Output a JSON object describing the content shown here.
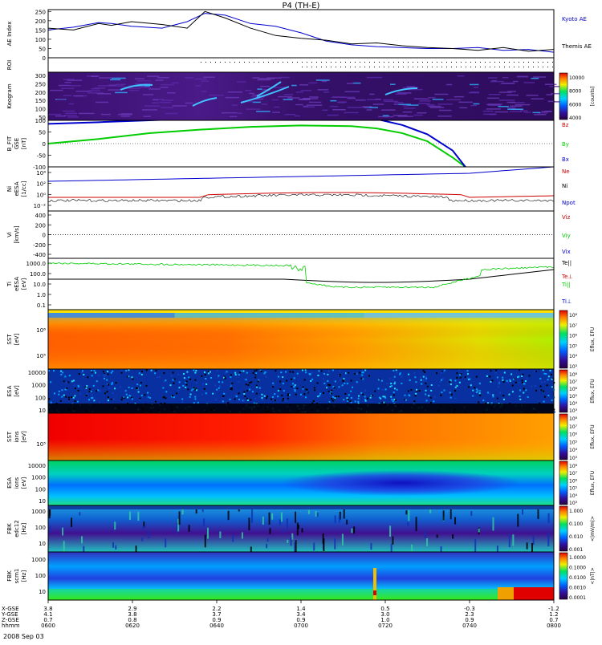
{
  "title": "P4 (TH-E)",
  "date_label": "2008 Sep 03",
  "colors": {
    "blue": "#0000cc",
    "black": "#000000",
    "green": "#00cc00",
    "red": "#cc0000"
  },
  "chart_data": [
    {
      "type": "line",
      "panel": "ae",
      "ylabel": "AE Index",
      "yticks": [
        "250",
        "200",
        "150",
        "100",
        "50",
        "0"
      ],
      "ylim": [
        0,
        260
      ],
      "x_hours": [
        6.0,
        6.1,
        6.2,
        6.25,
        6.33,
        6.45,
        6.55,
        6.62,
        6.7,
        6.8,
        6.9,
        7.0,
        7.1,
        7.2,
        7.3,
        7.4,
        7.5,
        7.6,
        7.7,
        7.8,
        7.9,
        8.0
      ],
      "series": [
        {
          "name": "Kyoto AE",
          "color": "#0000cc",
          "values": [
            150,
            165,
            190,
            185,
            170,
            160,
            195,
            240,
            230,
            185,
            170,
            135,
            90,
            70,
            60,
            55,
            50,
            50,
            55,
            40,
            45,
            30
          ]
        },
        {
          "name": "Themis AE",
          "color": "#000000",
          "values": [
            160,
            150,
            185,
            175,
            195,
            180,
            160,
            250,
            215,
            160,
            120,
            105,
            95,
            75,
            80,
            65,
            55,
            50,
            40,
            55,
            35,
            45
          ]
        }
      ]
    },
    {
      "type": "ticks",
      "panel": "roi",
      "ylabel": "ROI"
    },
    {
      "type": "heatmap",
      "panel": "keogram",
      "ylabel": "Keogram",
      "yticks": [
        "300",
        "250",
        "200",
        "150",
        "100",
        "50"
      ],
      "colorbar": {
        "ticks": [
          "10000",
          "8000",
          "6000",
          "4000"
        ],
        "label": "[counts]"
      }
    },
    {
      "type": "line",
      "panel": "bfit",
      "ylabel": "B_FIT",
      "ylabel2": "GSE",
      "ylabel3": "[nT]",
      "yticks": [
        "100",
        "50",
        "0",
        "-50",
        "-100"
      ],
      "ylim": [
        -100,
        100
      ],
      "x_hours": [
        6.0,
        6.2,
        6.4,
        6.6,
        6.8,
        7.0,
        7.2,
        7.3,
        7.4,
        7.5,
        7.6,
        7.65,
        7.7
      ],
      "series": [
        {
          "name": "Bz",
          "color": "#cc0000",
          "values": []
        },
        {
          "name": "By",
          "color": "#00cc00",
          "values": [
            0,
            20,
            45,
            60,
            72,
            78,
            75,
            65,
            45,
            10,
            -60,
            -100,
            -130
          ]
        },
        {
          "name": "Bx",
          "color": "#0000cc",
          "values": [
            85,
            92,
            100,
            108,
            115,
            118,
            115,
            105,
            80,
            40,
            -30,
            -100,
            -150
          ]
        }
      ]
    },
    {
      "type": "line",
      "panel": "ni",
      "ylabel": "Ni",
      "ylabel2": "eESA",
      "ylabel3": "[1/cc]",
      "yticks": [
        "10⁴",
        "10²",
        "10⁰",
        "10⁻²"
      ],
      "series": [
        {
          "name": "Ne",
          "color": "#cc0000"
        },
        {
          "name": "Ni",
          "color": "#000000"
        },
        {
          "name": "Npot",
          "color": "#0000cc"
        }
      ]
    },
    {
      "type": "line",
      "panel": "vi",
      "ylabel": "Vi",
      "ylabel3": "[km/s]",
      "yticks": [
        "400",
        "200",
        "0",
        "-200",
        "-400"
      ],
      "series": [
        {
          "name": "Viz",
          "color": "#cc0000"
        },
        {
          "name": "Viy",
          "color": "#00cc00"
        },
        {
          "name": "Vix",
          "color": "#0000cc"
        }
      ]
    },
    {
      "type": "line",
      "panel": "ti",
      "ylabel": "Ti",
      "ylabel2": "eESA",
      "ylabel3": "[eV]",
      "yticks": [
        "1000.0",
        "100.0",
        "10.0",
        "1.0",
        "0.1"
      ],
      "series": [
        {
          "name": "Te||",
          "color": "#000000"
        },
        {
          "name": "Te⊥",
          "color": "#cc0000"
        },
        {
          "name": "Ti||",
          "color": "#00cc00"
        },
        {
          "name": "Ti⊥",
          "color": "#0000cc"
        }
      ]
    },
    {
      "type": "heatmap",
      "panel": "sst_e",
      "ylabel": "SST",
      "ylabel3": "[eV]",
      "yticks": [
        "10⁶",
        "10⁵"
      ],
      "colorbar": {
        "ticks": [
          "10⁸",
          "10⁷",
          "10⁶",
          "10⁵",
          "10⁴",
          "10³"
        ],
        "label": "Eflux, EFU"
      }
    },
    {
      "type": "heatmap",
      "panel": "esa_e",
      "ylabel": "ESA",
      "ylabel3": "[eV]",
      "yticks": [
        "10000",
        "1000",
        "100",
        "10"
      ],
      "colorbar": {
        "ticks": [
          "10⁸",
          "10⁷",
          "10⁶",
          "10⁵",
          "10⁴",
          "10³"
        ],
        "label": "Eflux, EFU"
      }
    },
    {
      "type": "heatmap",
      "panel": "sst_i",
      "ylabel": "SST",
      "ylabel2": "ions",
      "ylabel3": "[eV]",
      "yticks": [
        "10⁵"
      ],
      "colorbar": {
        "ticks": [
          "10⁸",
          "10⁷",
          "10⁶",
          "10⁵",
          "10⁴",
          "10³"
        ],
        "label": "Eflux, EFU"
      }
    },
    {
      "type": "heatmap",
      "panel": "esa_i",
      "ylabel": "ESA",
      "ylabel2": "ions",
      "ylabel3": "[eV]",
      "yticks": [
        "10000",
        "1000",
        "100",
        "10"
      ],
      "colorbar": {
        "ticks": [
          "10⁸",
          "10⁷",
          "10⁶",
          "10⁵",
          "10⁴",
          "10³"
        ],
        "label": "Eflux, EFU"
      }
    },
    {
      "type": "heatmap",
      "panel": "fbk1",
      "ylabel": "FBK",
      "ylabel2": "edc12",
      "ylabel3": "[Hz]",
      "yticks": [
        "1000",
        "100",
        "10"
      ],
      "colorbar": {
        "ticks": [
          "1.000",
          "0.100",
          "0.010",
          "0.001"
        ],
        "label": "<|mV/m|>"
      }
    },
    {
      "type": "heatmap",
      "panel": "fbk2",
      "ylabel": "FBK",
      "ylabel2": "scm1",
      "ylabel3": "[Hz]",
      "yticks": [
        "1000",
        "100",
        "10"
      ],
      "colorbar": {
        "ticks": [
          "1.0000",
          "0.1000",
          "0.0100",
          "0.0010",
          "0.0001"
        ],
        "label": "<|nT|>"
      }
    }
  ],
  "xaxis": {
    "row_labels": [
      "X-GSE",
      "Y-GSE",
      "Z-GSE",
      "hhmm"
    ],
    "columns": [
      {
        "vals": [
          "3.8",
          "4.1",
          "0.7",
          "0600"
        ]
      },
      {
        "vals": [
          "2.9",
          "3.8",
          "0.8",
          "0620"
        ]
      },
      {
        "vals": [
          "2.2",
          "3.7",
          "0.9",
          "0640"
        ]
      },
      {
        "vals": [
          "1.4",
          "3.4",
          "0.9",
          "0700"
        ]
      },
      {
        "vals": [
          "0.5",
          "3.0",
          "1.0",
          "0720"
        ]
      },
      {
        "vals": [
          "-0.3",
          "2.3",
          "0.9",
          "0740"
        ]
      },
      {
        "vals": [
          "-1.2",
          "1.2",
          "0.7",
          "0800"
        ]
      }
    ]
  }
}
